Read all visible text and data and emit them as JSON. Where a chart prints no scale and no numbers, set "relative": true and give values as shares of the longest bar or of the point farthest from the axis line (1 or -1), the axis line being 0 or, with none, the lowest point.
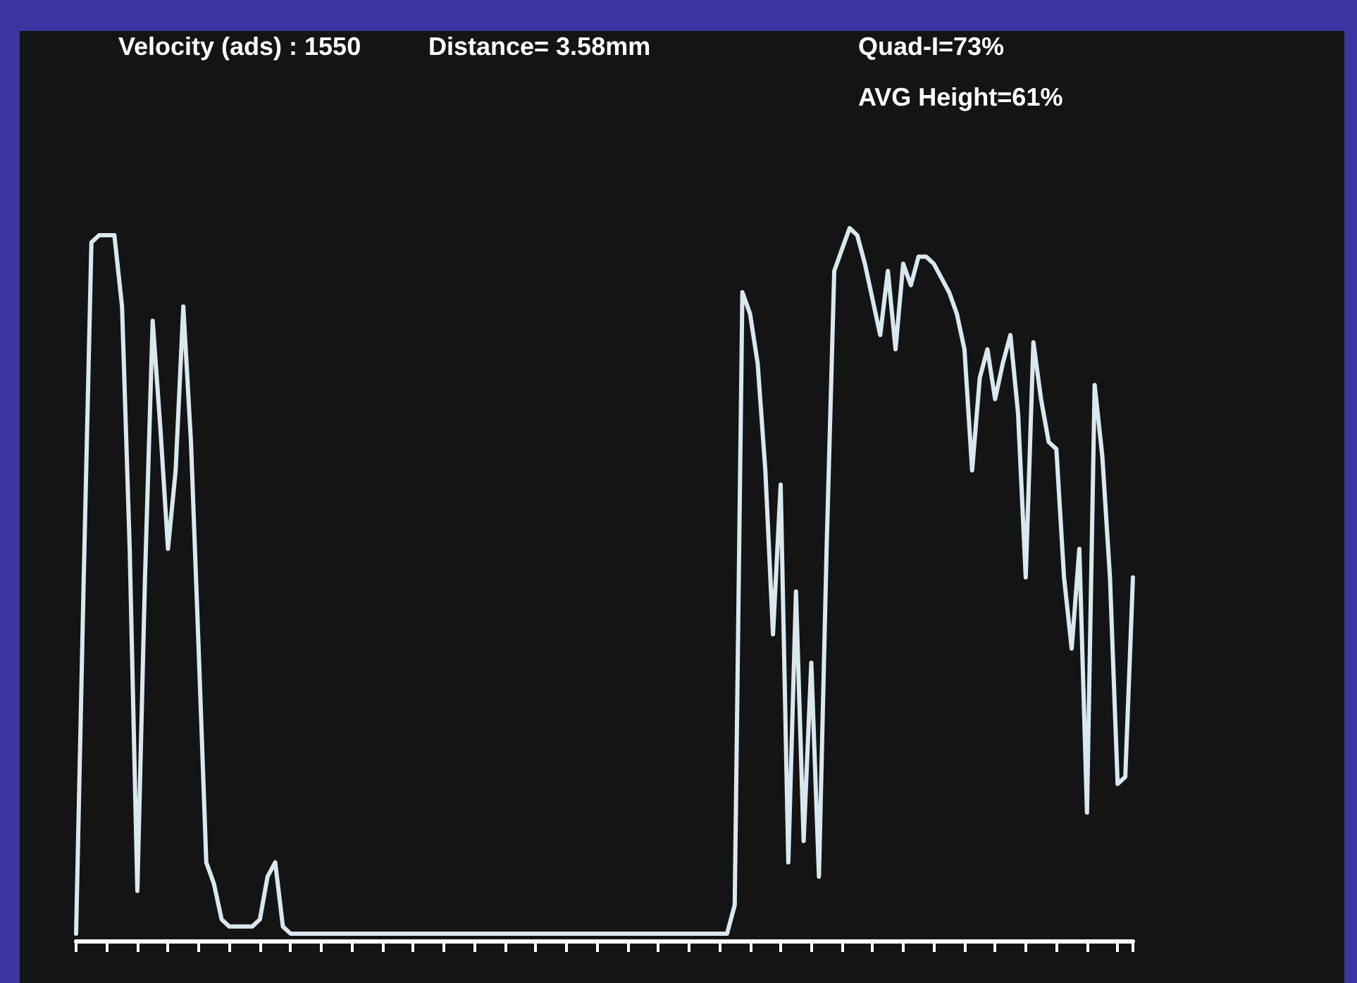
{
  "chart_data": {
    "type": "line",
    "relative": true,
    "color": "#d8e8ee",
    "annotations": [
      "Velocity (ads) : 1550",
      "Distance= 3.58mm",
      "Quad-I=73%",
      "AVG Height=61%"
    ],
    "categories": [
      null,
      null,
      null,
      null,
      null,
      null,
      null,
      null,
      null,
      null,
      null,
      null,
      null,
      null,
      null,
      null,
      null,
      null,
      null,
      null,
      null,
      null,
      null,
      null,
      null,
      null,
      null,
      null,
      null,
      null,
      null,
      null,
      null,
      null,
      null,
      null,
      null,
      null,
      null,
      null,
      null,
      null,
      null,
      null,
      null,
      null,
      null,
      null,
      null,
      null,
      null,
      null,
      null,
      null,
      null,
      null,
      null,
      null,
      null,
      null,
      null,
      null,
      null,
      null,
      null,
      null,
      null,
      null,
      null,
      null,
      null,
      null,
      null,
      null,
      null,
      null,
      null,
      null,
      null,
      null,
      null,
      null,
      null,
      null,
      null,
      null,
      null,
      null,
      null,
      null,
      null,
      null,
      null,
      null,
      null,
      null,
      null,
      null,
      null,
      null,
      null,
      null,
      null,
      null,
      null,
      null,
      null,
      null,
      null,
      null,
      null,
      null,
      null,
      null,
      null,
      null,
      null,
      null,
      null,
      null,
      null,
      null,
      null,
      null,
      null,
      null,
      null,
      null,
      null,
      null,
      null,
      null,
      null,
      null,
      null,
      null,
      null,
      null,
      null
    ],
    "values": [
      0.01,
      0.51,
      0.98,
      0.99,
      0.99,
      0.99,
      0.89,
      0.55,
      0.07,
      0.51,
      0.87,
      0.72,
      0.55,
      0.66,
      0.89,
      0.7,
      0.41,
      0.11,
      0.08,
      0.03,
      0.02,
      0.02,
      0.02,
      0.02,
      0.03,
      0.09,
      0.11,
      0.02,
      0.01,
      0.01,
      0.01,
      0.01,
      0.01,
      0.01,
      0.01,
      0.01,
      0.01,
      0.01,
      0.01,
      0.01,
      0.01,
      0.01,
      0.01,
      0.01,
      0.01,
      0.01,
      0.01,
      0.01,
      0.01,
      0.01,
      0.01,
      0.01,
      0.01,
      0.01,
      0.01,
      0.01,
      0.01,
      0.01,
      0.01,
      0.01,
      0.01,
      0.01,
      0.01,
      0.01,
      0.01,
      0.01,
      0.01,
      0.01,
      0.01,
      0.01,
      0.01,
      0.01,
      0.01,
      0.01,
      0.01,
      0.01,
      0.01,
      0.01,
      0.01,
      0.01,
      0.01,
      0.01,
      0.01,
      0.01,
      0.01,
      0.01,
      0.05,
      0.91,
      0.88,
      0.81,
      0.66,
      0.43,
      0.64,
      0.11,
      0.49,
      0.14,
      0.39,
      0.09,
      0.55,
      0.94,
      0.97,
      1,
      0.99,
      0.95,
      0.9,
      0.85,
      0.94,
      0.83,
      0.95,
      0.92,
      0.96,
      0.96,
      0.95,
      0.93,
      0.91,
      0.88,
      0.83,
      0.66,
      0.79,
      0.83,
      0.76,
      0.81,
      0.85,
      0.74,
      0.51,
      0.84,
      0.76,
      0.7,
      0.69,
      0.51,
      0.41,
      0.55,
      0.18,
      0.78,
      0.68,
      0.51,
      0.22,
      0.23,
      0.51
    ]
  }
}
